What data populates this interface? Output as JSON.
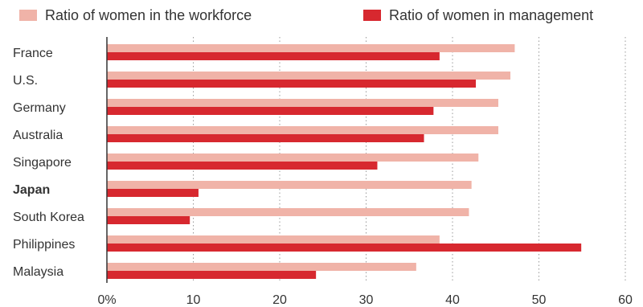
{
  "chart_data": {
    "type": "bar",
    "orientation": "horizontal",
    "categories": [
      "France",
      "U.S.",
      "Germany",
      "Australia",
      "Singapore",
      "Japan",
      "South Korea",
      "Philippines",
      "Malaysia"
    ],
    "bold_categories": [
      "Japan"
    ],
    "series": [
      {
        "name": "Ratio of women in the workforce",
        "color": "#f0b3a8",
        "values": [
          47.2,
          46.7,
          45.3,
          45.3,
          43.0,
          42.2,
          41.9,
          38.5,
          35.8
        ]
      },
      {
        "name": "Ratio of women in management",
        "color": "#d7282f",
        "values": [
          38.5,
          42.7,
          37.8,
          36.7,
          31.3,
          10.6,
          9.6,
          54.9,
          24.2
        ]
      }
    ],
    "x_ticks": [
      "0%",
      "10",
      "20",
      "30",
      "40",
      "50",
      "60"
    ],
    "xlim": [
      0,
      60
    ],
    "grid": "vertical dotted",
    "legend_position": "top"
  }
}
